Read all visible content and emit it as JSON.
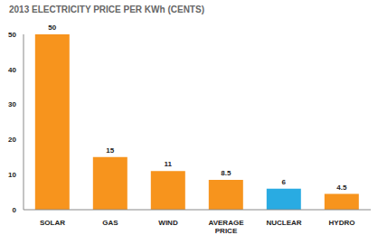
{
  "chart_data": {
    "type": "bar",
    "title": "2013 ELECTRICITY PRICE PER KWh (CENTS)",
    "categories": [
      "SOLAR",
      "GAS",
      "WIND",
      "AVERAGE PRICE",
      "NUCLEAR",
      "HYDRO"
    ],
    "values": [
      50,
      15,
      11,
      8.5,
      6,
      4.5
    ],
    "colors": [
      "#f7941d",
      "#f7941d",
      "#f7941d",
      "#f7941d",
      "#29abe2",
      "#f7941d"
    ],
    "ylim": [
      0,
      50
    ],
    "yticks": [
      0,
      10,
      20,
      30,
      40,
      50
    ],
    "grid": false,
    "data_labels": true
  }
}
